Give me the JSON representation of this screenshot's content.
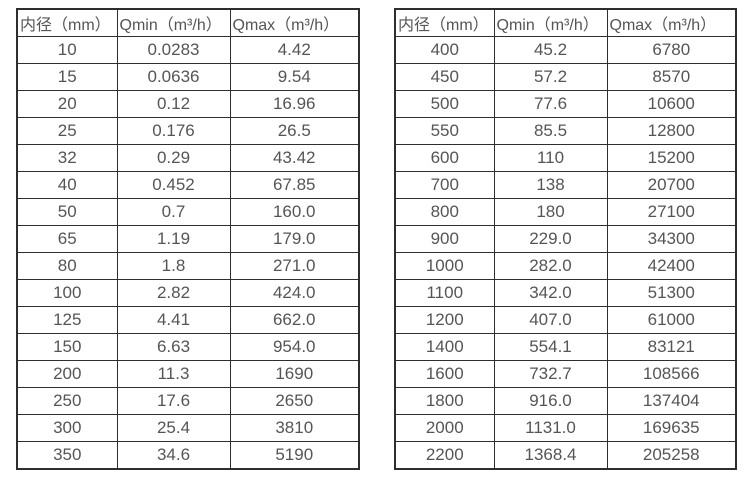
{
  "colors": {
    "background": "#ffffff",
    "border": "#2e2e2e",
    "text": "#555555"
  },
  "tables": [
    {
      "name": "small-diameter-flow-table",
      "headers": [
        "内径（mm）",
        "Qmin（m³/h）",
        "Qmax（m³/h）"
      ],
      "rows": [
        [
          "10",
          "0.0283",
          "4.42"
        ],
        [
          "15",
          "0.0636",
          "9.54"
        ],
        [
          "20",
          "0.12",
          "16.96"
        ],
        [
          "25",
          "0.176",
          "26.5"
        ],
        [
          "32",
          "0.29",
          "43.42"
        ],
        [
          "40",
          "0.452",
          "67.85"
        ],
        [
          "50",
          "0.7",
          "160.0"
        ],
        [
          "65",
          "1.19",
          "179.0"
        ],
        [
          "80",
          "1.8",
          "271.0"
        ],
        [
          "100",
          "2.82",
          "424.0"
        ],
        [
          "125",
          "4.41",
          "662.0"
        ],
        [
          "150",
          "6.63",
          "954.0"
        ],
        [
          "200",
          "11.3",
          "1690"
        ],
        [
          "250",
          "17.6",
          "2650"
        ],
        [
          "300",
          "25.4",
          "3810"
        ],
        [
          "350",
          "34.6",
          "5190"
        ]
      ]
    },
    {
      "name": "large-diameter-flow-table",
      "headers": [
        "内径（mm）",
        "Qmin（m³/h）",
        "Qmax（m³/h）"
      ],
      "rows": [
        [
          "400",
          "45.2",
          "6780"
        ],
        [
          "450",
          "57.2",
          "8570"
        ],
        [
          "500",
          "77.6",
          "10600"
        ],
        [
          "550",
          "85.5",
          "12800"
        ],
        [
          "600",
          "110",
          "15200"
        ],
        [
          "700",
          "138",
          "20700"
        ],
        [
          "800",
          "180",
          "27100"
        ],
        [
          "900",
          "229.0",
          "34300"
        ],
        [
          "1000",
          "282.0",
          "42400"
        ],
        [
          "1100",
          "342.0",
          "51300"
        ],
        [
          "1200",
          "407.0",
          "61000"
        ],
        [
          "1400",
          "554.1",
          "83121"
        ],
        [
          "1600",
          "732.7",
          "108566"
        ],
        [
          "1800",
          "916.0",
          "137404"
        ],
        [
          "2000",
          "1131.0",
          "169635"
        ],
        [
          "2200",
          "1368.4",
          "205258"
        ]
      ]
    }
  ],
  "chart_data": [
    {
      "type": "table",
      "title": "",
      "columns": [
        "内径（mm）",
        "Qmin（m³/h）",
        "Qmax（m³/h）"
      ],
      "rows": [
        [
          10,
          0.0283,
          4.42
        ],
        [
          15,
          0.0636,
          9.54
        ],
        [
          20,
          0.12,
          16.96
        ],
        [
          25,
          0.176,
          26.5
        ],
        [
          32,
          0.29,
          43.42
        ],
        [
          40,
          0.452,
          67.85
        ],
        [
          50,
          0.7,
          160.0
        ],
        [
          65,
          1.19,
          179.0
        ],
        [
          80,
          1.8,
          271.0
        ],
        [
          100,
          2.82,
          424.0
        ],
        [
          125,
          4.41,
          662.0
        ],
        [
          150,
          6.63,
          954.0
        ],
        [
          200,
          11.3,
          1690
        ],
        [
          250,
          17.6,
          2650
        ],
        [
          300,
          25.4,
          3810
        ],
        [
          350,
          34.6,
          5190
        ]
      ]
    },
    {
      "type": "table",
      "title": "",
      "columns": [
        "内径（mm）",
        "Qmin（m³/h）",
        "Qmax（m³/h）"
      ],
      "rows": [
        [
          400,
          45.2,
          6780
        ],
        [
          450,
          57.2,
          8570
        ],
        [
          500,
          77.6,
          10600
        ],
        [
          550,
          85.5,
          12800
        ],
        [
          600,
          110,
          15200
        ],
        [
          700,
          138,
          20700
        ],
        [
          800,
          180,
          27100
        ],
        [
          900,
          229.0,
          34300
        ],
        [
          1000,
          282.0,
          42400
        ],
        [
          1100,
          342.0,
          51300
        ],
        [
          1200,
          407.0,
          61000
        ],
        [
          1400,
          554.1,
          83121
        ],
        [
          1600,
          732.7,
          108566
        ],
        [
          1800,
          916.0,
          137404
        ],
        [
          2000,
          1131.0,
          169635
        ],
        [
          2200,
          1368.4,
          205258
        ]
      ]
    }
  ]
}
